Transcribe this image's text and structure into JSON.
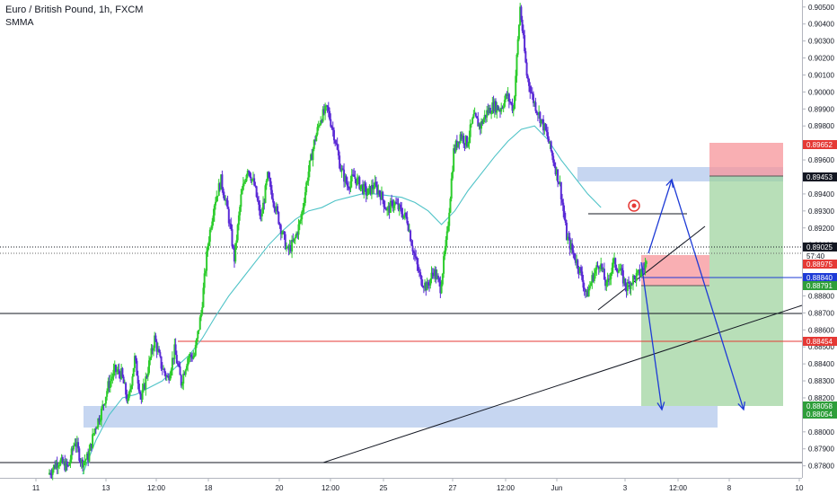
{
  "header": {
    "title": "Euro / British Pound, 1h, FXCM",
    "indicator": "SMMA"
  },
  "chart_data": {
    "type": "candlestick",
    "symbol": "EURGBP",
    "interval": "1h",
    "y_range": [
      0.8774,
      0.9052
    ],
    "y_ticks": [
      "0.90500",
      "0.90400",
      "0.90300",
      "0.90200",
      "0.90100",
      "0.90000",
      "0.89900",
      "0.89800",
      "0.89700",
      "0.89600",
      "0.89500",
      "0.89400",
      "0.89300",
      "0.89200",
      "0.89100",
      "0.89000",
      "0.88900",
      "0.88800",
      "0.88700",
      "0.88600",
      "0.88500",
      "0.88400",
      "0.88300",
      "0.88200",
      "0.88100",
      "0.88000",
      "0.87900",
      "0.87800"
    ],
    "x_ticks": [
      "11",
      "13",
      "12:00",
      "18",
      "20",
      "12:00",
      "25",
      "27",
      "12:00",
      "Jun",
      "3",
      "12:00",
      "8",
      "10"
    ],
    "price_labels": [
      {
        "text": "0.89652",
        "kind": "stop"
      },
      {
        "text": "0.89453",
        "kind": "target-short"
      },
      {
        "text": "0.89025",
        "kind": "current"
      },
      {
        "text": "57:40",
        "kind": "countdown"
      },
      {
        "text": "0.88975",
        "kind": "stop"
      },
      {
        "text": "0.88840",
        "kind": "entry"
      },
      {
        "text": "0.88791",
        "kind": "target"
      },
      {
        "text": "0.88454",
        "kind": "level"
      },
      {
        "text": "0.88058",
        "kind": "target"
      },
      {
        "text": "0.88054",
        "kind": "target"
      }
    ],
    "candle_path": [
      [
        0,
        0.8775
      ],
      [
        3,
        0.8783
      ],
      [
        6,
        0.8779
      ],
      [
        8,
        0.8795
      ],
      [
        10,
        0.8782
      ],
      [
        12,
        0.8785
      ],
      [
        14,
        0.8802
      ],
      [
        16,
        0.8812
      ],
      [
        18,
        0.8827
      ],
      [
        20,
        0.8836
      ],
      [
        22,
        0.8834
      ],
      [
        24,
        0.8817
      ],
      [
        26,
        0.8843
      ],
      [
        28,
        0.8819
      ],
      [
        30,
        0.8837
      ],
      [
        32,
        0.8855
      ],
      [
        34,
        0.8839
      ],
      [
        36,
        0.8831
      ],
      [
        38,
        0.8848
      ],
      [
        40,
        0.8829
      ],
      [
        42,
        0.8844
      ],
      [
        44,
        0.8845
      ],
      [
        46,
        0.887
      ],
      [
        48,
        0.891
      ],
      [
        50,
        0.8935
      ],
      [
        52,
        0.8948
      ],
      [
        54,
        0.893
      ],
      [
        56,
        0.8902
      ],
      [
        58,
        0.8938
      ],
      [
        60,
        0.8956
      ],
      [
        62,
        0.8945
      ],
      [
        64,
        0.8925
      ],
      [
        66,
        0.895
      ],
      [
        68,
        0.8935
      ],
      [
        70,
        0.892
      ],
      [
        72,
        0.8906
      ],
      [
        74,
        0.8912
      ],
      [
        76,
        0.8925
      ],
      [
        78,
        0.895
      ],
      [
        80,
        0.897
      ],
      [
        82,
        0.8985
      ],
      [
        84,
        0.899
      ],
      [
        86,
        0.8975
      ],
      [
        88,
        0.8955
      ],
      [
        90,
        0.8945
      ],
      [
        92,
        0.895
      ],
      [
        94,
        0.8945
      ],
      [
        96,
        0.894
      ],
      [
        98,
        0.8945
      ],
      [
        100,
        0.894
      ],
      [
        102,
        0.893
      ],
      [
        104,
        0.8935
      ],
      [
        106,
        0.893
      ],
      [
        108,
        0.8925
      ],
      [
        110,
        0.8905
      ],
      [
        112,
        0.889
      ],
      [
        114,
        0.8885
      ],
      [
        116,
        0.8895
      ],
      [
        118,
        0.8885
      ],
      [
        120,
        0.8915
      ],
      [
        122,
        0.8965
      ],
      [
        124,
        0.8975
      ],
      [
        126,
        0.897
      ],
      [
        128,
        0.8985
      ],
      [
        130,
        0.898
      ],
      [
        132,
        0.8988
      ],
      [
        134,
        0.8992
      ],
      [
        136,
        0.899
      ],
      [
        138,
        0.8998
      ],
      [
        140,
        0.899
      ],
      [
        142,
        0.905
      ],
      [
        144,
        0.901
      ],
      [
        146,
        0.8995
      ],
      [
        148,
        0.8985
      ],
      [
        150,
        0.8975
      ],
      [
        152,
        0.896
      ],
      [
        154,
        0.8945
      ],
      [
        156,
        0.8915
      ],
      [
        158,
        0.8905
      ],
      [
        160,
        0.8895
      ],
      [
        162,
        0.888
      ],
      [
        164,
        0.8892
      ],
      [
        166,
        0.89
      ],
      [
        168,
        0.8885
      ],
      [
        170,
        0.89
      ],
      [
        172,
        0.8895
      ],
      [
        174,
        0.8885
      ],
      [
        176,
        0.889
      ],
      [
        178,
        0.8893
      ],
      [
        180,
        0.8899
      ]
    ],
    "smma_path": [
      [
        10,
        0.8775
      ],
      [
        14,
        0.8795
      ],
      [
        18,
        0.881
      ],
      [
        22,
        0.882
      ],
      [
        26,
        0.8822
      ],
      [
        30,
        0.8826
      ],
      [
        34,
        0.883
      ],
      [
        38,
        0.8838
      ],
      [
        42,
        0.8845
      ],
      [
        46,
        0.8855
      ],
      [
        50,
        0.8868
      ],
      [
        54,
        0.888
      ],
      [
        58,
        0.889
      ],
      [
        62,
        0.89
      ],
      [
        66,
        0.891
      ],
      [
        70,
        0.8918
      ],
      [
        74,
        0.8925
      ],
      [
        78,
        0.893
      ],
      [
        82,
        0.8932
      ],
      [
        86,
        0.8936
      ],
      [
        90,
        0.8938
      ],
      [
        94,
        0.894
      ],
      [
        98,
        0.894
      ],
      [
        102,
        0.8939
      ],
      [
        106,
        0.8938
      ],
      [
        110,
        0.8935
      ],
      [
        114,
        0.893
      ],
      [
        118,
        0.8922
      ],
      [
        122,
        0.893
      ],
      [
        126,
        0.8942
      ],
      [
        130,
        0.8952
      ],
      [
        134,
        0.8962
      ],
      [
        138,
        0.8971
      ],
      [
        142,
        0.8978
      ],
      [
        146,
        0.898
      ],
      [
        150,
        0.8972
      ],
      [
        154,
        0.896
      ],
      [
        158,
        0.895
      ],
      [
        162,
        0.894
      ],
      [
        166,
        0.8932
      ]
    ],
    "grid": false
  }
}
